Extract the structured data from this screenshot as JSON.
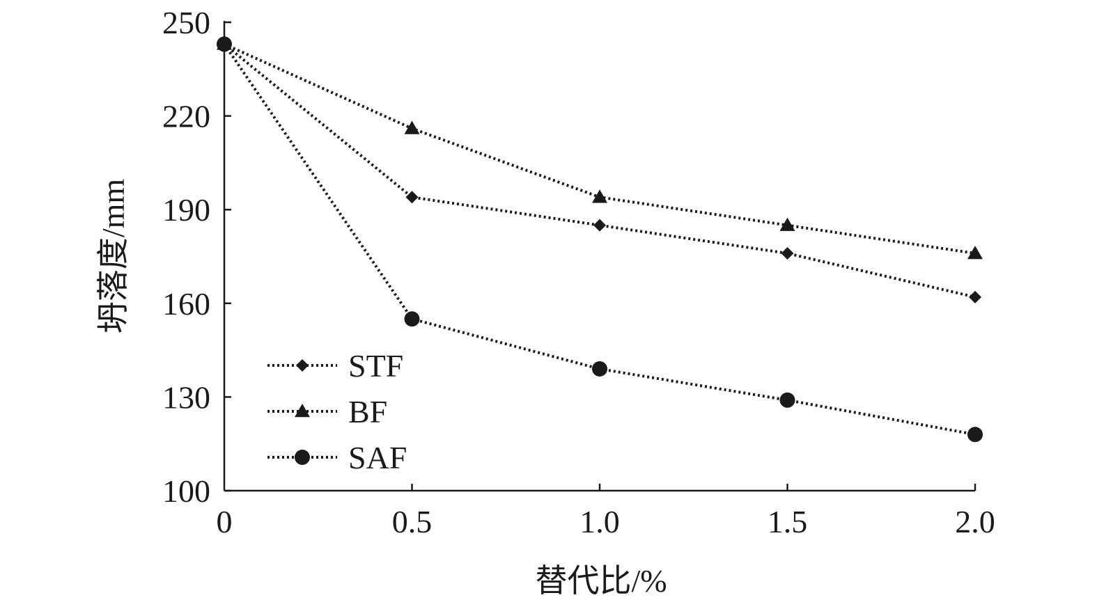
{
  "chart_data": {
    "type": "line",
    "title": "",
    "xlabel": "替代比/%",
    "ylabel": "坍落度/mm",
    "x": [
      0,
      0.5,
      1.0,
      1.5,
      2.0
    ],
    "x_tick_labels": [
      "0",
      "0.5",
      "1.0",
      "1.5",
      "2.0"
    ],
    "xlim": [
      0,
      2.0
    ],
    "ylim": [
      100,
      250
    ],
    "y_ticks": [
      100,
      130,
      160,
      190,
      220,
      250
    ],
    "y_tick_labels": [
      "100",
      "130",
      "160",
      "190",
      "220",
      "250"
    ],
    "grid": false,
    "legend_position": "bottom-left",
    "line_style": "dotted",
    "color": "#1a1a1a",
    "series": [
      {
        "name": "STF",
        "marker": "diamond",
        "values": [
          243,
          194,
          185,
          176,
          162
        ]
      },
      {
        "name": "BF",
        "marker": "triangle",
        "values": [
          243,
          216,
          194,
          185,
          176
        ]
      },
      {
        "name": "SAF",
        "marker": "circle",
        "values": [
          243,
          155,
          139,
          129,
          118
        ]
      }
    ]
  }
}
